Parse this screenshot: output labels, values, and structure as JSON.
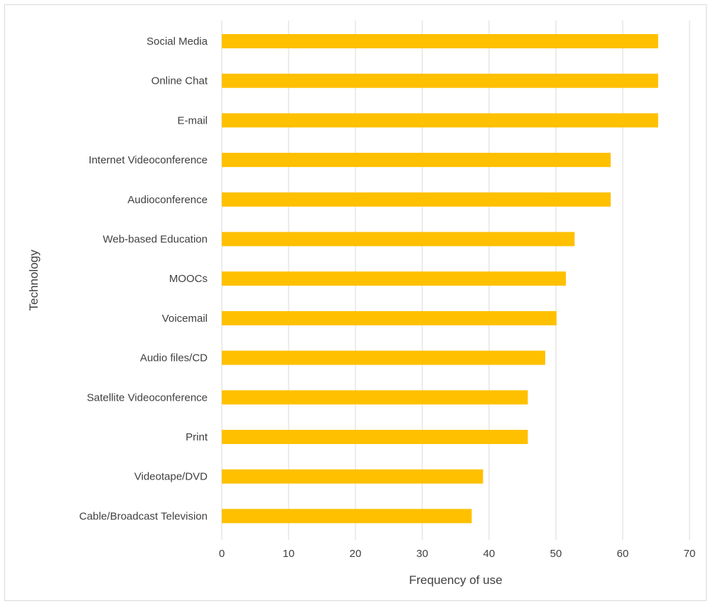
{
  "chart_data": {
    "type": "bar",
    "orientation": "horizontal",
    "categories": [
      "Social Media",
      "Online Chat",
      "E-mail",
      "Internet Videoconference",
      "Audioconference",
      "Web-based Education",
      "MOOCs",
      "Voicemail",
      "Audio files/CD",
      "Satellite Videoconference",
      "Print",
      "Videotape/DVD",
      "Cable/Broadcast Television"
    ],
    "values": [
      65.3,
      65.3,
      65.3,
      58.2,
      58.2,
      52.8,
      51.5,
      50.1,
      48.4,
      45.8,
      45.8,
      39.1,
      37.4
    ],
    "xlabel": "Frequency of use",
    "ylabel": "Technology",
    "xlim": [
      0,
      70
    ],
    "xticks": [
      "0",
      "10",
      "20",
      "30",
      "40",
      "50",
      "60",
      "70"
    ],
    "grid": "vertical",
    "legend": "none",
    "bar_color": "#FFC000",
    "grid_color": "#d9d9d9",
    "text_color": "#404040"
  }
}
